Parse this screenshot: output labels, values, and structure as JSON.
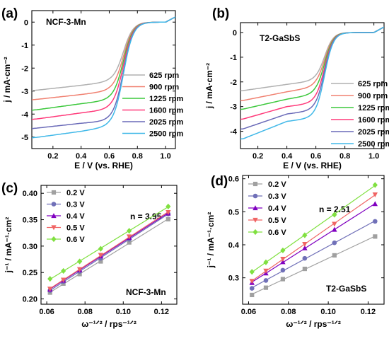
{
  "chart_data": [
    {
      "panel_label": "(a)",
      "type": "line",
      "title": "NCF-3-Mn",
      "xlabel": "E / V (vs. RHE)",
      "ylabel": "j / mA·cm⁻²",
      "xlim": [
        0.05,
        1.07
      ],
      "ylim": [
        -5.5,
        0.5
      ],
      "xticks": [
        0.2,
        0.4,
        0.6,
        0.8,
        1.0
      ],
      "yticks": [
        -5,
        -4,
        -3,
        -2,
        -1,
        0
      ],
      "legend_position": "center-right",
      "curve_model": {
        "e_half": 0.7,
        "slope": 0.035
      },
      "series": [
        {
          "name": "625 rpm",
          "color": "#b0b0b0",
          "values": [
            -2.95,
            -2.75,
            -2.6
          ]
        },
        {
          "name": "900 rpm",
          "color": "#f08070",
          "values": [
            -3.35,
            -3.15,
            -3.0
          ]
        },
        {
          "name": "1225 rpm",
          "color": "#3cc83c",
          "values": [
            -3.8,
            -3.55,
            -3.4
          ]
        },
        {
          "name": "1600 rpm",
          "color": "#ff3a7a",
          "values": [
            -4.2,
            -3.95,
            -3.8
          ]
        },
        {
          "name": "2025 rpm",
          "color": "#6a6ab8",
          "values": [
            -4.6,
            -4.4,
            -4.3
          ]
        },
        {
          "name": "2500 rpm",
          "color": "#40b8e8",
          "values": [
            -5.0,
            -4.75,
            -4.55
          ]
        }
      ]
    },
    {
      "panel_label": "(b)",
      "type": "line",
      "title": "T2-GaSbS",
      "xlabel": "E / V (vs. RHE)",
      "ylabel": "j / mA·cm⁻²",
      "xlim": [
        0.08,
        1.07
      ],
      "ylim": [
        -4.7,
        0.4
      ],
      "xticks": [
        0.2,
        0.4,
        0.6,
        0.8,
        1.0
      ],
      "yticks": [
        -4,
        -3,
        -2,
        -1,
        0
      ],
      "legend_position": "center-right",
      "curve_model": {
        "e_half": 0.66,
        "slope": 0.03
      },
      "series": [
        {
          "name": "625 rpm",
          "color": "#b0b0b0",
          "values": [
            -2.35,
            -2.1,
            -1.95
          ]
        },
        {
          "name": "900 rpm",
          "color": "#f08070",
          "values": [
            -2.75,
            -2.4,
            -2.2
          ]
        },
        {
          "name": "1225 rpm",
          "color": "#3cc83c",
          "values": [
            -3.1,
            -2.7,
            -2.5
          ]
        },
        {
          "name": "1600 rpm",
          "color": "#ff3a7a",
          "values": [
            -3.5,
            -3.0,
            -2.85
          ]
        },
        {
          "name": "2025 rpm",
          "color": "#6a6ab8",
          "values": [
            -3.9,
            -3.3,
            -3.15
          ]
        },
        {
          "name": "2500 rpm",
          "color": "#40b8e8",
          "values": [
            -4.3,
            -3.6,
            -3.45
          ]
        }
      ]
    },
    {
      "panel_label": "(c)",
      "type": "scatter",
      "title": "NCF-3-Mn",
      "annotation": "n = 3.95",
      "xlabel": "ω⁻¹ᐟ² / rps⁻¹ᐟ²",
      "ylabel": "j⁻¹ / mA⁻¹·cm²",
      "xlim": [
        0.057,
        0.128
      ],
      "ylim": [
        0.19,
        0.415
      ],
      "xticks": [
        0.06,
        0.08,
        0.1,
        0.12
      ],
      "yticks": [
        0.2,
        0.25,
        0.3,
        0.35,
        0.4
      ],
      "legend_position": "top-left",
      "x": [
        0.0617,
        0.0687,
        0.0772,
        0.0882,
        0.1031,
        0.1235
      ],
      "series": [
        {
          "name": "0.2 V",
          "color": "#a0a0a0",
          "marker": "square",
          "values": [
            0.212,
            0.229,
            0.247,
            0.271,
            0.307,
            0.351
          ]
        },
        {
          "name": "0.3 V",
          "color": "#7070b8",
          "marker": "circle",
          "values": [
            0.216,
            0.233,
            0.252,
            0.277,
            0.313,
            0.361
          ]
        },
        {
          "name": "0.4 V",
          "color": "#8000c0",
          "marker": "triangle-up",
          "values": [
            0.218,
            0.235,
            0.255,
            0.281,
            0.316,
            0.362
          ]
        },
        {
          "name": "0.5 V",
          "color": "#f06464",
          "marker": "triangle-down",
          "values": [
            0.219,
            0.236,
            0.256,
            0.283,
            0.318,
            0.364
          ]
        },
        {
          "name": "0.6 V",
          "color": "#80e040",
          "marker": "diamond",
          "values": [
            0.238,
            0.253,
            0.271,
            0.295,
            0.329,
            0.375
          ]
        }
      ]
    },
    {
      "panel_label": "(d)",
      "type": "scatter",
      "title": "T2-GaSbS",
      "annotation": "n = 2.51",
      "xlabel": "ω⁻¹ᐟ² / rps⁻¹ᐟ²",
      "ylabel": "j⁻¹ / mA⁻¹·cm²",
      "xlim": [
        0.057,
        0.128
      ],
      "ylim": [
        0.22,
        0.61
      ],
      "xticks": [
        0.06,
        0.08,
        0.1,
        0.12
      ],
      "yticks": [
        0.3,
        0.4,
        0.5,
        0.6
      ],
      "legend_position": "top-left",
      "x": [
        0.0617,
        0.0687,
        0.0772,
        0.0882,
        0.1031,
        0.1235
      ],
      "series": [
        {
          "name": "0.2 V",
          "color": "#a0a0a0",
          "marker": "square",
          "values": [
            0.248,
            0.27,
            0.296,
            0.327,
            0.368,
            0.425
          ]
        },
        {
          "name": "0.3 V",
          "color": "#7070b8",
          "marker": "circle",
          "values": [
            0.268,
            0.292,
            0.323,
            0.359,
            0.406,
            0.471
          ]
        },
        {
          "name": "0.4 V",
          "color": "#8000c0",
          "marker": "triangle-up",
          "values": [
            0.285,
            0.314,
            0.348,
            0.39,
            0.446,
            0.524
          ]
        },
        {
          "name": "0.5 V",
          "color": "#f06464",
          "marker": "triangle-down",
          "values": [
            0.29,
            0.321,
            0.357,
            0.402,
            0.463,
            0.552
          ]
        },
        {
          "name": "0.6 V",
          "color": "#80e040",
          "marker": "diamond",
          "values": [
            0.318,
            0.347,
            0.383,
            0.429,
            0.491,
            0.581
          ]
        }
      ]
    }
  ]
}
